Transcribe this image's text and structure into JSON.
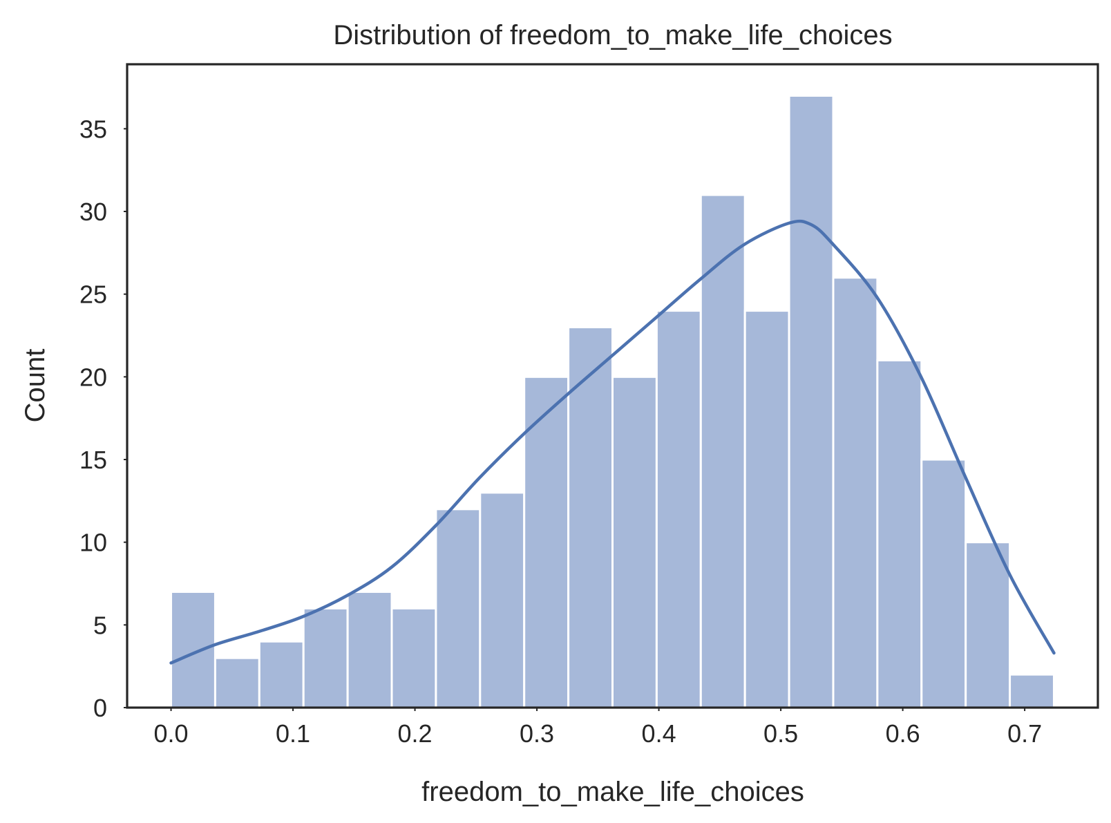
{
  "chart_data": {
    "type": "bar",
    "title": "Distribution of freedom_to_make_life_choices",
    "xlabel": "freedom_to_make_life_choices",
    "ylabel": "Count",
    "xlim": [
      -0.036,
      0.76
    ],
    "ylim": [
      0,
      38.9
    ],
    "x_ticks": [
      0.0,
      0.1,
      0.2,
      0.3,
      0.4,
      0.5,
      0.6,
      0.7
    ],
    "x_tick_labels": [
      "0.0",
      "0.1",
      "0.2",
      "0.3",
      "0.4",
      "0.5",
      "0.6",
      "0.7"
    ],
    "y_ticks": [
      0,
      5,
      10,
      15,
      20,
      25,
      30,
      35
    ],
    "y_tick_labels": [
      "0",
      "5",
      "10",
      "15",
      "20",
      "25",
      "30",
      "35"
    ],
    "bin_start": 0.0,
    "bin_width": 0.0362,
    "values": [
      7,
      3,
      4,
      6,
      7,
      6,
      12,
      13,
      20,
      23,
      20,
      24,
      31,
      24,
      37,
      26,
      21,
      15,
      10,
      2
    ],
    "kde": {
      "x": [
        0.0,
        0.036,
        0.072,
        0.108,
        0.145,
        0.181,
        0.217,
        0.253,
        0.29,
        0.326,
        0.362,
        0.398,
        0.434,
        0.47,
        0.507,
        0.525,
        0.543,
        0.579,
        0.615,
        0.651,
        0.688,
        0.724
      ],
      "y": [
        2.7,
        3.8,
        4.6,
        5.5,
        6.8,
        8.5,
        11.0,
        13.9,
        16.6,
        19.0,
        21.3,
        23.6,
        25.9,
        28.0,
        29.3,
        29.2,
        28.0,
        24.8,
        20.0,
        14.0,
        8.0,
        3.3
      ]
    },
    "colors": {
      "bar": "#a6b8d9",
      "line": "#4c72b0",
      "text": "#262626"
    },
    "grid": false,
    "legend": "none"
  }
}
